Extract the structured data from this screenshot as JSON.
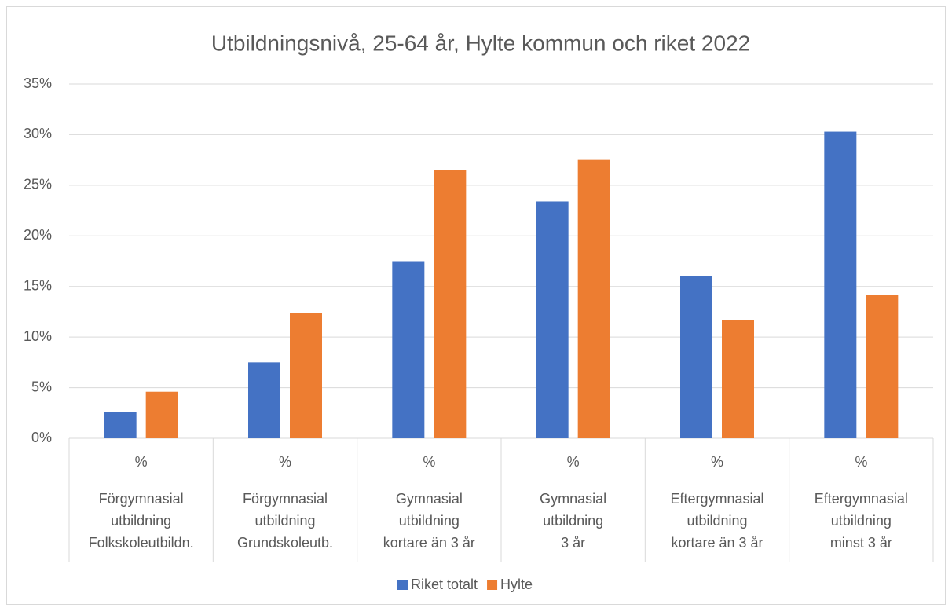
{
  "chart_data": {
    "type": "bar",
    "title": "Utbildningsnivå, 25-64 år, Hylte kommun och riket 2022",
    "subcategories": [
      "%",
      "%",
      "%",
      "%",
      "%",
      "%"
    ],
    "categories": [
      [
        "Förgymnasial",
        "utbildning",
        "Folkskoleutbildn."
      ],
      [
        "Förgymnasial",
        "utbildning",
        "Grundskoleutb."
      ],
      [
        "Gymnasial",
        "utbildning",
        "kortare än 3 år"
      ],
      [
        "Gymnasial",
        "utbildning",
        "3 år"
      ],
      [
        "Eftergymnasial",
        "utbildning",
        "kortare än 3 år"
      ],
      [
        "Eftergymnasial",
        "utbildning",
        "minst 3 år"
      ]
    ],
    "series": [
      {
        "name": "Riket totalt",
        "color": "#4472c4",
        "values": [
          2.6,
          7.5,
          17.5,
          23.4,
          16.0,
          30.3
        ]
      },
      {
        "name": "Hylte",
        "color": "#ed7d31",
        "values": [
          4.6,
          12.4,
          26.5,
          27.5,
          11.7,
          14.2
        ]
      }
    ],
    "ylim": [
      0,
      35
    ],
    "yticks": [
      {
        "value": 0,
        "label": "0%"
      },
      {
        "value": 5,
        "label": "5%"
      },
      {
        "value": 10,
        "label": "10%"
      },
      {
        "value": 15,
        "label": "15%"
      },
      {
        "value": 20,
        "label": "20%"
      },
      {
        "value": 25,
        "label": "25%"
      },
      {
        "value": 30,
        "label": "30%"
      },
      {
        "value": 35,
        "label": "35%"
      }
    ],
    "grid": true,
    "legend": "bottom"
  }
}
